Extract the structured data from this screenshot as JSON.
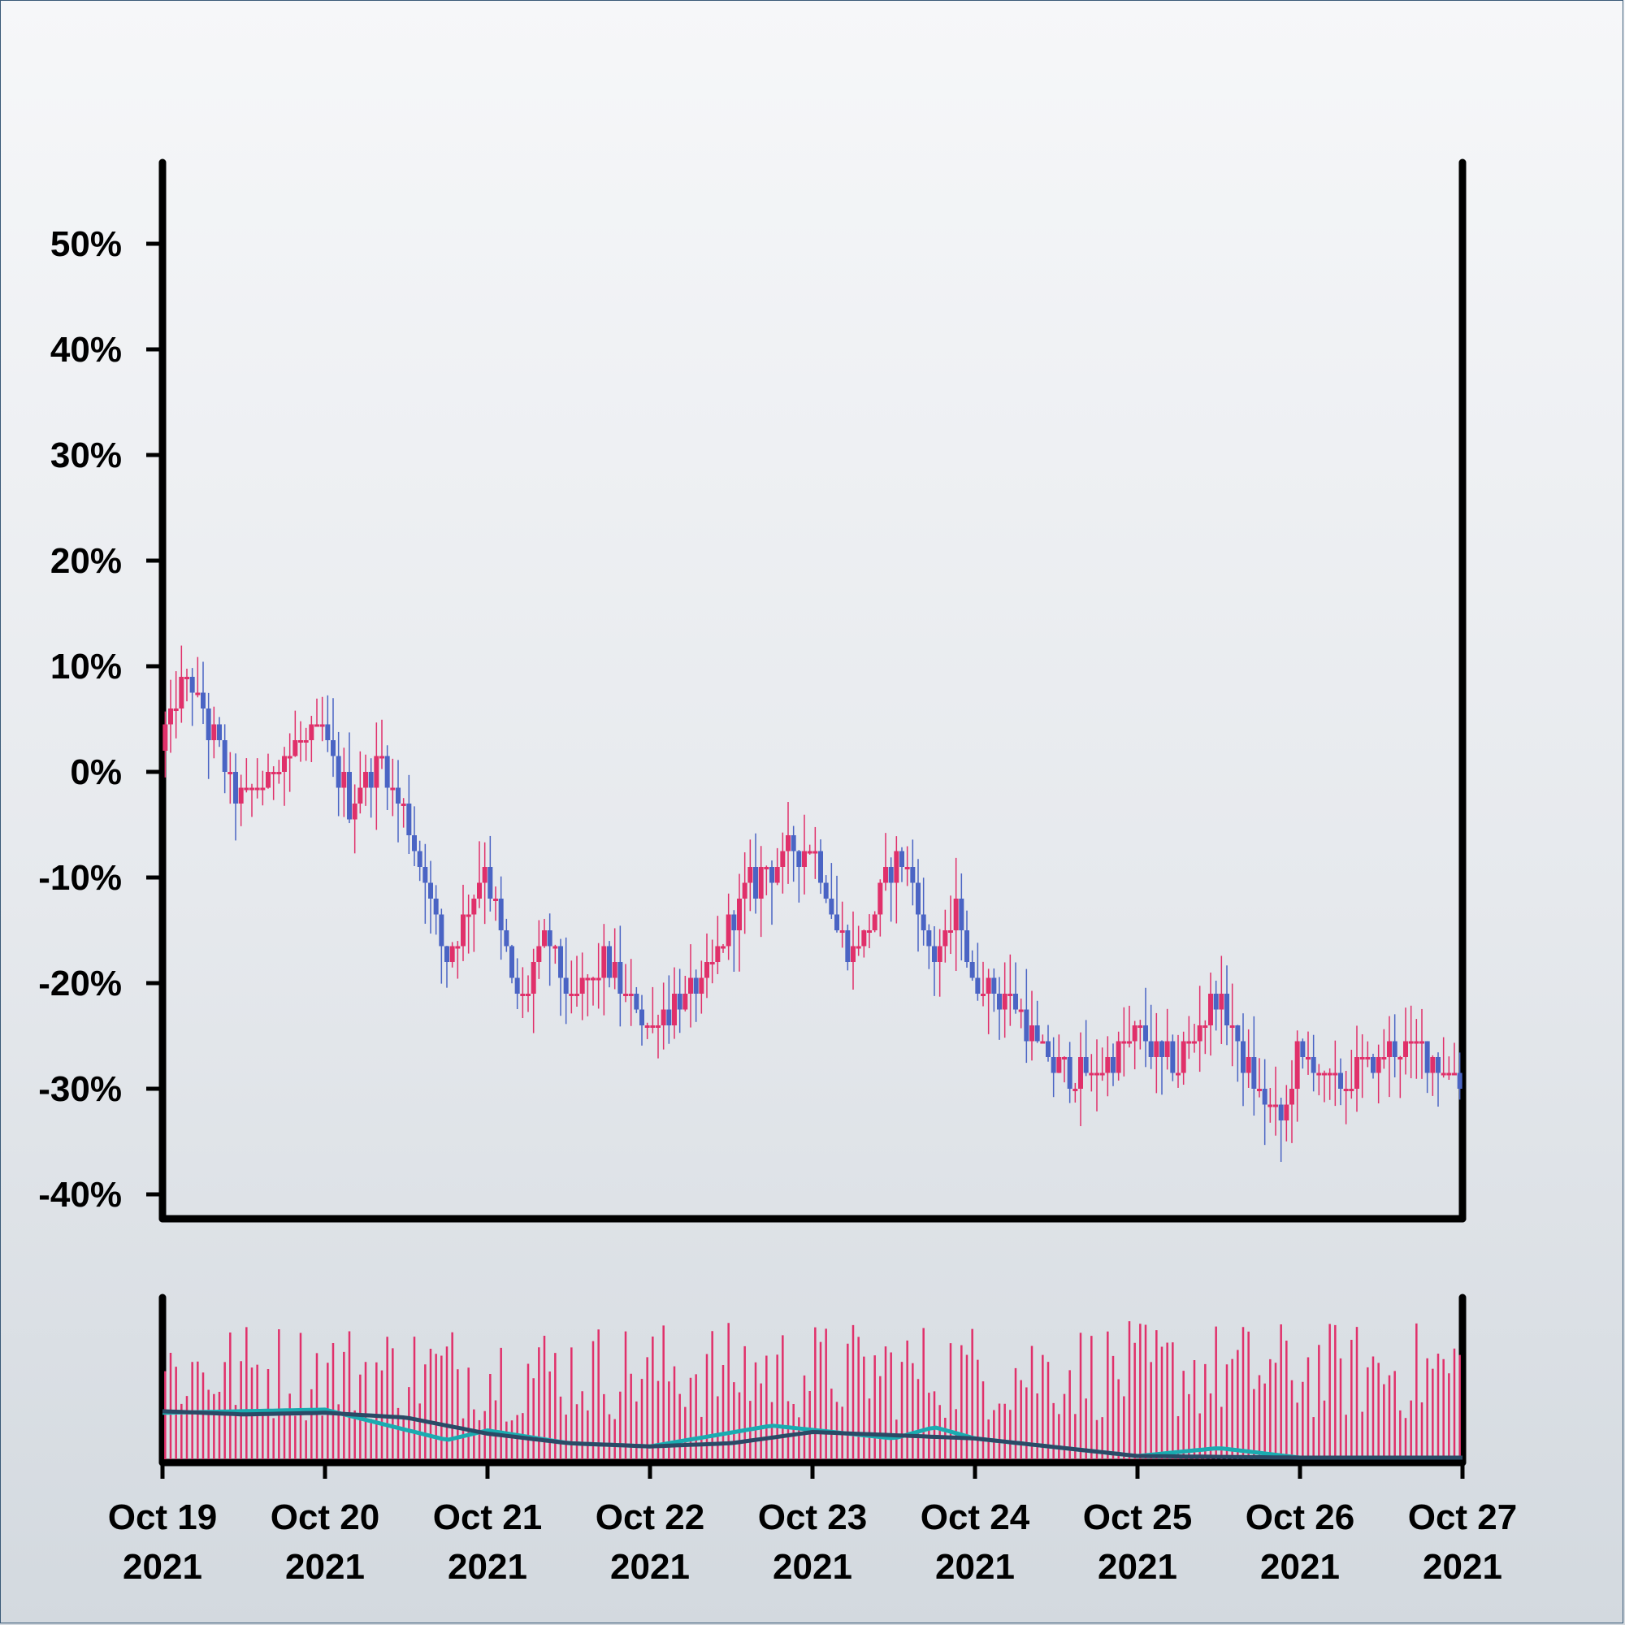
{
  "chart_data": {
    "type": "candlestick",
    "title": "",
    "xlabel": "",
    "ylabel": "",
    "y_unit": "%",
    "ylim": [
      -41,
      58
    ],
    "y_ticks": [
      50,
      40,
      30,
      20,
      10,
      0,
      -10,
      -20,
      -30,
      -40
    ],
    "y_tick_labels": [
      "50%",
      "40%",
      "30%",
      "20%",
      "10%",
      "0%",
      "-10%",
      "-20%",
      "-30%",
      "-40%"
    ],
    "x_range": [
      "2021-10-19",
      "2021-10-27"
    ],
    "x_ticks": [
      {
        "date": "2021-10-19",
        "line1": "Oct 19",
        "line2": "2021"
      },
      {
        "date": "2021-10-20",
        "line1": "Oct 20",
        "line2": "2021"
      },
      {
        "date": "2021-10-21",
        "line1": "Oct 21",
        "line2": "2021"
      },
      {
        "date": "2021-10-22",
        "line1": "Oct 22",
        "line2": "2021"
      },
      {
        "date": "2021-10-23",
        "line1": "Oct 23",
        "line2": "2021"
      },
      {
        "date": "2021-10-24",
        "line1": "Oct 24",
        "line2": "2021"
      },
      {
        "date": "2021-10-25",
        "line1": "Oct 25",
        "line2": "2021"
      },
      {
        "date": "2021-10-26",
        "line1": "Oct 26",
        "line2": "2021"
      },
      {
        "date": "2021-10-27",
        "line1": "Oct 27",
        "line2": "2021"
      }
    ],
    "grid": false,
    "legend": "none",
    "colors": {
      "up": "#e0306a",
      "down": "#4a64c4",
      "volume": "#e0306a",
      "volume_ma_fast": "#1aabb0",
      "volume_ma_slow": "#2a4a66",
      "axis": "#000000"
    },
    "price_close_path": [
      {
        "date": "2021-10-19",
        "close": 2
      },
      {
        "date": "2021-10-19T04:00",
        "close": 9
      },
      {
        "date": "2021-10-19T12:00",
        "close": -3
      },
      {
        "date": "2021-10-19T18:00",
        "close": 1
      },
      {
        "date": "2021-10-20",
        "close": 4
      },
      {
        "date": "2021-10-20T04:00",
        "close": -3
      },
      {
        "date": "2021-10-20T09:00",
        "close": 1
      },
      {
        "date": "2021-10-20T15:00",
        "close": -9
      },
      {
        "date": "2021-10-20T18:00",
        "close": -18
      },
      {
        "date": "2021-10-20T22:00",
        "close": -13
      },
      {
        "date": "2021-10-21",
        "close": -9
      },
      {
        "date": "2021-10-21T05:00",
        "close": -22
      },
      {
        "date": "2021-10-21T09:00",
        "close": -16
      },
      {
        "date": "2021-10-21T13:00",
        "close": -22
      },
      {
        "date": "2021-10-21T18:00",
        "close": -18
      },
      {
        "date": "2021-10-22",
        "close": -24
      },
      {
        "date": "2021-10-22T08:00",
        "close": -20
      },
      {
        "date": "2021-10-22T15:00",
        "close": -11
      },
      {
        "date": "2021-10-22T20:00",
        "close": -8
      },
      {
        "date": "2021-10-23",
        "close": -7
      },
      {
        "date": "2021-10-23T06:00",
        "close": -18
      },
      {
        "date": "2021-10-23T12:00",
        "close": -9
      },
      {
        "date": "2021-10-23T14:00",
        "close": -8
      },
      {
        "date": "2021-10-23T18:00",
        "close": -18
      },
      {
        "date": "2021-10-23T22:00",
        "close": -13
      },
      {
        "date": "2021-10-24",
        "close": -20
      },
      {
        "date": "2021-10-24T06:00",
        "close": -22
      },
      {
        "date": "2021-10-24T12:00",
        "close": -28
      },
      {
        "date": "2021-10-24T18:00",
        "close": -29
      },
      {
        "date": "2021-10-25",
        "close": -25
      },
      {
        "date": "2021-10-25T06:00",
        "close": -28
      },
      {
        "date": "2021-10-25T12:00",
        "close": -21
      },
      {
        "date": "2021-10-25T18:00",
        "close": -30
      },
      {
        "date": "2021-10-25T22:00",
        "close": -33
      },
      {
        "date": "2021-10-26",
        "close": -27
      },
      {
        "date": "2021-10-26T06:00",
        "close": -30
      },
      {
        "date": "2021-10-26T12:00",
        "close": -27
      },
      {
        "date": "2021-10-26T18:00",
        "close": -26
      },
      {
        "date": "2021-10-27",
        "close": -29
      }
    ],
    "volume_ma_fast": [
      {
        "date": "2021-10-19",
        "value": 0.28
      },
      {
        "date": "2021-10-20",
        "value": 0.3
      },
      {
        "date": "2021-10-20T18:00",
        "value": 0.11
      },
      {
        "date": "2021-10-21",
        "value": 0.17
      },
      {
        "date": "2021-10-21T12:00",
        "value": 0.09
      },
      {
        "date": "2021-10-22",
        "value": 0.07
      },
      {
        "date": "2021-10-22T18:00",
        "value": 0.2
      },
      {
        "date": "2021-10-23T12:00",
        "value": 0.12
      },
      {
        "date": "2021-10-23T18:00",
        "value": 0.19
      },
      {
        "date": "2021-10-24",
        "value": 0.12
      },
      {
        "date": "2021-10-25",
        "value": 0.01
      },
      {
        "date": "2021-10-25T12:00",
        "value": 0.06
      },
      {
        "date": "2021-10-26",
        "value": 0.0
      },
      {
        "date": "2021-10-27",
        "value": 0.0
      }
    ],
    "volume_ma_slow": [
      {
        "date": "2021-10-19",
        "value": 0.29
      },
      {
        "date": "2021-10-19T12:00",
        "value": 0.27
      },
      {
        "date": "2021-10-20",
        "value": 0.28
      },
      {
        "date": "2021-10-20T12:00",
        "value": 0.25
      },
      {
        "date": "2021-10-21",
        "value": 0.15
      },
      {
        "date": "2021-10-21T12:00",
        "value": 0.09
      },
      {
        "date": "2021-10-22",
        "value": 0.07
      },
      {
        "date": "2021-10-22T12:00",
        "value": 0.09
      },
      {
        "date": "2021-10-23",
        "value": 0.16
      },
      {
        "date": "2021-10-23T12:00",
        "value": 0.14
      },
      {
        "date": "2021-10-24",
        "value": 0.12
      },
      {
        "date": "2021-10-25",
        "value": 0.01
      },
      {
        "date": "2021-10-26",
        "value": 0.0
      },
      {
        "date": "2021-10-27",
        "value": 0.0
      }
    ],
    "volume_scale_note": "",
    "candles_per_day": 30
  }
}
